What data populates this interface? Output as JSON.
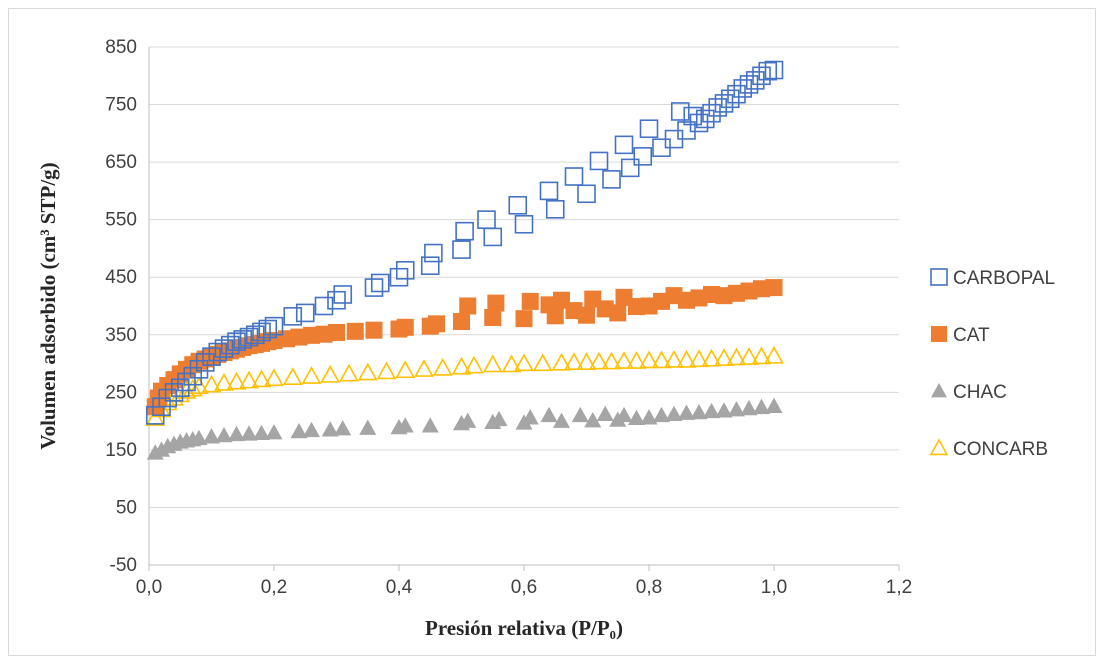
{
  "chart_data": {
    "type": "scatter",
    "title": "",
    "xlabel": "Presión relativa (P/P₀)",
    "ylabel": "Volumen adsorbido (cm³ STP/g)",
    "xlim": [
      0.0,
      1.2
    ],
    "ylim": [
      -50,
      850
    ],
    "x_ticks": [
      0.0,
      0.2,
      0.4,
      0.6,
      0.8,
      1.0,
      1.2
    ],
    "x_tick_labels": [
      "0,0",
      "0,2",
      "0,4",
      "0,6",
      "0,8",
      "1,0",
      "1,2"
    ],
    "y_ticks": [
      -50,
      50,
      150,
      250,
      350,
      450,
      550,
      650,
      750,
      850
    ],
    "y_tick_labels": [
      "-50",
      "50",
      "150",
      "250",
      "350",
      "450",
      "550",
      "650",
      "750",
      "850"
    ],
    "grid": "horizontal",
    "legend_position": "right",
    "series": [
      {
        "name": "CARBOPAL",
        "marker": "square-open",
        "color": "#4472c4",
        "points": [
          [
            0.01,
            210
          ],
          [
            0.02,
            225
          ],
          [
            0.03,
            240
          ],
          [
            0.04,
            250
          ],
          [
            0.05,
            258
          ],
          [
            0.06,
            268
          ],
          [
            0.07,
            278
          ],
          [
            0.08,
            290
          ],
          [
            0.09,
            302
          ],
          [
            0.1,
            312
          ],
          [
            0.11,
            320
          ],
          [
            0.12,
            326
          ],
          [
            0.13,
            332
          ],
          [
            0.14,
            338
          ],
          [
            0.15,
            342
          ],
          [
            0.16,
            346
          ],
          [
            0.17,
            350
          ],
          [
            0.18,
            355
          ],
          [
            0.19,
            360
          ],
          [
            0.2,
            365
          ],
          [
            0.23,
            382
          ],
          [
            0.25,
            388
          ],
          [
            0.28,
            400
          ],
          [
            0.3,
            410
          ],
          [
            0.31,
            420
          ],
          [
            0.36,
            432
          ],
          [
            0.37,
            440
          ],
          [
            0.4,
            450
          ],
          [
            0.41,
            462
          ],
          [
            0.45,
            470
          ],
          [
            0.455,
            492
          ],
          [
            0.5,
            498
          ],
          [
            0.505,
            530
          ],
          [
            0.54,
            550
          ],
          [
            0.55,
            520
          ],
          [
            0.59,
            575
          ],
          [
            0.6,
            542
          ],
          [
            0.64,
            600
          ],
          [
            0.65,
            568
          ],
          [
            0.68,
            625
          ],
          [
            0.7,
            595
          ],
          [
            0.72,
            652
          ],
          [
            0.74,
            620
          ],
          [
            0.76,
            680
          ],
          [
            0.77,
            640
          ],
          [
            0.79,
            660
          ],
          [
            0.8,
            708
          ],
          [
            0.82,
            675
          ],
          [
            0.84,
            690
          ],
          [
            0.85,
            738
          ],
          [
            0.86,
            705
          ],
          [
            0.87,
            730
          ],
          [
            0.88,
            718
          ],
          [
            0.89,
            725
          ],
          [
            0.9,
            735
          ],
          [
            0.91,
            745
          ],
          [
            0.92,
            752
          ],
          [
            0.93,
            760
          ],
          [
            0.94,
            768
          ],
          [
            0.95,
            778
          ],
          [
            0.96,
            785
          ],
          [
            0.97,
            792
          ],
          [
            0.98,
            800
          ],
          [
            0.99,
            808
          ],
          [
            1.0,
            810
          ]
        ]
      },
      {
        "name": "CAT",
        "marker": "square-filled",
        "color": "#ed7d31",
        "points": [
          [
            0.01,
            225
          ],
          [
            0.015,
            240
          ],
          [
            0.02,
            252
          ],
          [
            0.03,
            262
          ],
          [
            0.04,
            272
          ],
          [
            0.05,
            282
          ],
          [
            0.06,
            290
          ],
          [
            0.07,
            298
          ],
          [
            0.08,
            304
          ],
          [
            0.09,
            308
          ],
          [
            0.1,
            313
          ],
          [
            0.11,
            316
          ],
          [
            0.12,
            319
          ],
          [
            0.13,
            322
          ],
          [
            0.14,
            325
          ],
          [
            0.15,
            328
          ],
          [
            0.16,
            331
          ],
          [
            0.17,
            333
          ],
          [
            0.18,
            335
          ],
          [
            0.19,
            338
          ],
          [
            0.2,
            340
          ],
          [
            0.22,
            343
          ],
          [
            0.24,
            346
          ],
          [
            0.26,
            349
          ],
          [
            0.28,
            351
          ],
          [
            0.3,
            354
          ],
          [
            0.33,
            356
          ],
          [
            0.36,
            358
          ],
          [
            0.4,
            360
          ],
          [
            0.41,
            363
          ],
          [
            0.45,
            365
          ],
          [
            0.46,
            369
          ],
          [
            0.5,
            373
          ],
          [
            0.51,
            400
          ],
          [
            0.55,
            380
          ],
          [
            0.555,
            405
          ],
          [
            0.6,
            378
          ],
          [
            0.61,
            408
          ],
          [
            0.64,
            402
          ],
          [
            0.65,
            383
          ],
          [
            0.66,
            410
          ],
          [
            0.68,
            392
          ],
          [
            0.7,
            384
          ],
          [
            0.71,
            412
          ],
          [
            0.73,
            395
          ],
          [
            0.75,
            388
          ],
          [
            0.76,
            415
          ],
          [
            0.78,
            399
          ],
          [
            0.8,
            400
          ],
          [
            0.82,
            408
          ],
          [
            0.84,
            418
          ],
          [
            0.86,
            410
          ],
          [
            0.88,
            414
          ],
          [
            0.9,
            420
          ],
          [
            0.92,
            418
          ],
          [
            0.94,
            422
          ],
          [
            0.96,
            426
          ],
          [
            0.98,
            430
          ],
          [
            1.0,
            432
          ]
        ]
      },
      {
        "name": "CHAC",
        "marker": "triangle-filled",
        "color": "#a5a5a5",
        "points": [
          [
            0.01,
            145
          ],
          [
            0.02,
            150
          ],
          [
            0.03,
            156
          ],
          [
            0.04,
            160
          ],
          [
            0.05,
            164
          ],
          [
            0.06,
            166
          ],
          [
            0.07,
            168
          ],
          [
            0.08,
            170
          ],
          [
            0.1,
            173
          ],
          [
            0.12,
            175
          ],
          [
            0.14,
            177
          ],
          [
            0.16,
            178
          ],
          [
            0.18,
            179
          ],
          [
            0.2,
            180
          ],
          [
            0.24,
            182
          ],
          [
            0.26,
            184
          ],
          [
            0.29,
            185
          ],
          [
            0.31,
            187
          ],
          [
            0.35,
            188
          ],
          [
            0.4,
            189
          ],
          [
            0.41,
            192
          ],
          [
            0.45,
            192
          ],
          [
            0.5,
            196
          ],
          [
            0.51,
            200
          ],
          [
            0.55,
            198
          ],
          [
            0.56,
            203
          ],
          [
            0.6,
            197
          ],
          [
            0.61,
            206
          ],
          [
            0.64,
            210
          ],
          [
            0.66,
            200
          ],
          [
            0.69,
            210
          ],
          [
            0.71,
            201
          ],
          [
            0.73,
            212
          ],
          [
            0.75,
            202
          ],
          [
            0.76,
            210
          ],
          [
            0.78,
            205
          ],
          [
            0.8,
            206
          ],
          [
            0.82,
            210
          ],
          [
            0.84,
            212
          ],
          [
            0.86,
            214
          ],
          [
            0.88,
            215
          ],
          [
            0.9,
            217
          ],
          [
            0.92,
            218
          ],
          [
            0.94,
            220
          ],
          [
            0.96,
            222
          ],
          [
            0.98,
            224
          ],
          [
            1.0,
            226
          ]
        ]
      },
      {
        "name": "CONCARB",
        "marker": "triangle-open",
        "color": "#ffc000",
        "points": [
          [
            0.01,
            205
          ],
          [
            0.02,
            220
          ],
          [
            0.03,
            232
          ],
          [
            0.04,
            240
          ],
          [
            0.05,
            246
          ],
          [
            0.06,
            252
          ],
          [
            0.07,
            256
          ],
          [
            0.08,
            260
          ],
          [
            0.1,
            263
          ],
          [
            0.12,
            266
          ],
          [
            0.14,
            268
          ],
          [
            0.16,
            270
          ],
          [
            0.18,
            272
          ],
          [
            0.2,
            274
          ],
          [
            0.23,
            276
          ],
          [
            0.26,
            278
          ],
          [
            0.29,
            280
          ],
          [
            0.32,
            282
          ],
          [
            0.35,
            284
          ],
          [
            0.38,
            286
          ],
          [
            0.41,
            288
          ],
          [
            0.44,
            290
          ],
          [
            0.47,
            292
          ],
          [
            0.5,
            294
          ],
          [
            0.52,
            296
          ],
          [
            0.55,
            298
          ],
          [
            0.58,
            298
          ],
          [
            0.6,
            300
          ],
          [
            0.63,
            300
          ],
          [
            0.66,
            301
          ],
          [
            0.68,
            302
          ],
          [
            0.7,
            302
          ],
          [
            0.72,
            303
          ],
          [
            0.74,
            303
          ],
          [
            0.76,
            304
          ],
          [
            0.78,
            304
          ],
          [
            0.8,
            305
          ],
          [
            0.82,
            305
          ],
          [
            0.84,
            306
          ],
          [
            0.86,
            306
          ],
          [
            0.88,
            307
          ],
          [
            0.9,
            308
          ],
          [
            0.92,
            309
          ],
          [
            0.94,
            310
          ],
          [
            0.96,
            311
          ],
          [
            0.98,
            312
          ],
          [
            1.0,
            313
          ]
        ]
      }
    ]
  }
}
